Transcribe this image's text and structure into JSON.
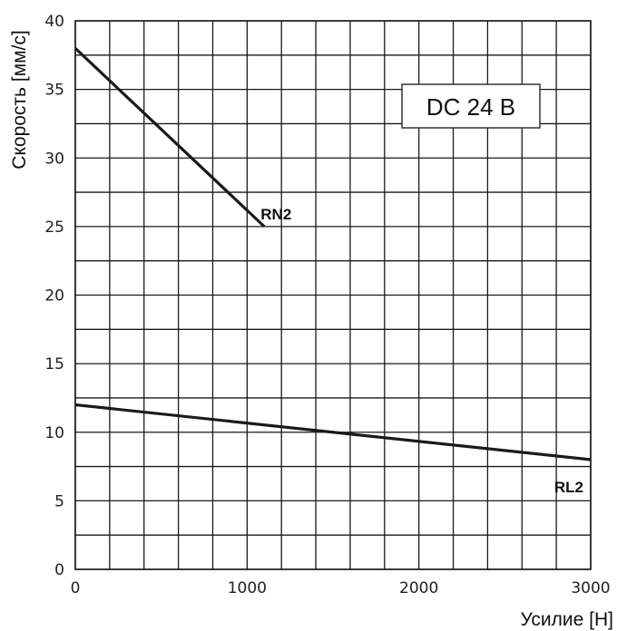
{
  "chart_data": {
    "type": "line",
    "title": "",
    "xlabel": "Усилие [Н]",
    "ylabel": "Скорость [мм/с]",
    "xlim": [
      0,
      3000
    ],
    "ylim": [
      0,
      40
    ],
    "x_ticks": [
      0,
      1000,
      2000,
      3000
    ],
    "y_ticks": [
      0,
      5,
      10,
      15,
      20,
      25,
      30,
      35,
      40
    ],
    "grid": true,
    "x_grid_step": 200,
    "y_grid_step": 2.5,
    "series": [
      {
        "name": "RN2",
        "x": [
          0,
          1100
        ],
        "y": [
          38,
          25
        ],
        "color": "#1a1a1a"
      },
      {
        "name": "RL2",
        "x": [
          0,
          3000
        ],
        "y": [
          12,
          8
        ],
        "color": "#1a1a1a"
      }
    ],
    "annotation": "DC 24 В"
  }
}
